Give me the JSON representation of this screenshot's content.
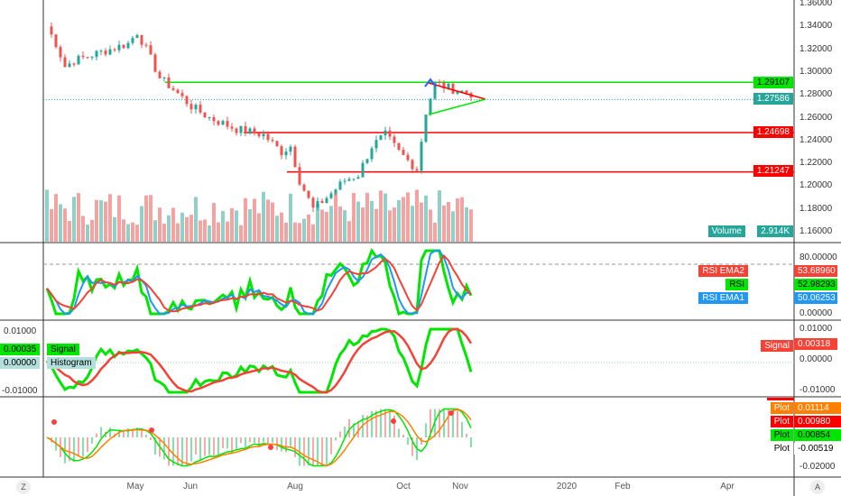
{
  "price_axis": [
    "1.36000",
    "1.34000",
    "1.32000",
    "1.30000",
    "1.28000",
    "1.26000",
    "1.24000",
    "1.22000",
    "1.20000",
    "1.18000",
    "1.16000"
  ],
  "price_tags": [
    {
      "value": "1.29107",
      "color": "#00e600",
      "text_color": "#000"
    },
    {
      "value": "1.27586",
      "color": "#26a69a",
      "text_color": "#fff"
    },
    {
      "value": "1.24698",
      "color": "#ff0000",
      "text_color": "#fff"
    },
    {
      "value": "1.21247",
      "color": "#ff0000",
      "text_color": "#fff"
    }
  ],
  "volume": {
    "label": "Volume",
    "value": "2.914K"
  },
  "rsi": {
    "axis": [
      "80.00000",
      "0.00000"
    ],
    "tags": [
      {
        "name": "RSI EMA2",
        "value": "53.68960",
        "color": "#f44336"
      },
      {
        "name": "RSI",
        "value": "52.98293",
        "color": "#00e600"
      },
      {
        "name": "RSI EMA1",
        "value": "50.06253",
        "color": "#2196f3"
      }
    ]
  },
  "macd": {
    "axis": [
      "0.01000",
      "0.00000",
      "-0.01000"
    ],
    "signal": {
      "name": "Signal",
      "value": "0.00318"
    },
    "left": [
      {
        "name": "Signal",
        "value": "0.00035"
      },
      {
        "name": "Histogram",
        "value": "0.00000"
      }
    ]
  },
  "plot": {
    "axis": [
      "-0.02000"
    ],
    "tags": [
      {
        "name": "Plot",
        "value": "0.01114",
        "color": "#ff8000"
      },
      {
        "name": "Plot",
        "value": "0.00980",
        "color": "#ff0000"
      },
      {
        "name": "Plot",
        "value": "0.00854",
        "color": "#00e600"
      },
      {
        "name": "Plot",
        "value": "-0.00519",
        "color": "#fff"
      }
    ]
  },
  "time_axis": [
    "May",
    "Jun",
    "Aug",
    "Oct",
    "Nov",
    "2020",
    "Feb",
    "Apr"
  ],
  "corner_left": "Z",
  "corner_right": "A",
  "chart_data": {
    "type": "candlestick",
    "ylim": [
      1.16,
      1.36
    ],
    "price_keypoints": [
      [
        0,
        1.34
      ],
      [
        2,
        1.325
      ],
      [
        4,
        1.305
      ],
      [
        6,
        1.31
      ],
      [
        10,
        1.315
      ],
      [
        14,
        1.32
      ],
      [
        18,
        1.325
      ],
      [
        20,
        1.335
      ],
      [
        22,
        1.32
      ],
      [
        25,
        1.295
      ],
      [
        28,
        1.285
      ],
      [
        32,
        1.27
      ],
      [
        36,
        1.26
      ],
      [
        42,
        1.25
      ],
      [
        48,
        1.245
      ],
      [
        52,
        1.23
      ],
      [
        54,
        1.235
      ],
      [
        56,
        1.205
      ],
      [
        59,
        1.18
      ],
      [
        62,
        1.19
      ],
      [
        66,
        1.205
      ],
      [
        69,
        1.21
      ],
      [
        72,
        1.235
      ],
      [
        75,
        1.245
      ],
      [
        78,
        1.23
      ],
      [
        82,
        1.215
      ],
      [
        84,
        1.265
      ],
      [
        86,
        1.29
      ],
      [
        90,
        1.285
      ],
      [
        95,
        1.28
      ]
    ],
    "hlines": [
      {
        "price": 1.29107,
        "color": "#00e600"
      },
      {
        "price": 1.24698,
        "color": "#ff0000"
      },
      {
        "price": 1.21247,
        "color": "#ff0000"
      },
      {
        "price": 1.27586,
        "color": "#26a69a",
        "style": "dotted"
      }
    ]
  }
}
